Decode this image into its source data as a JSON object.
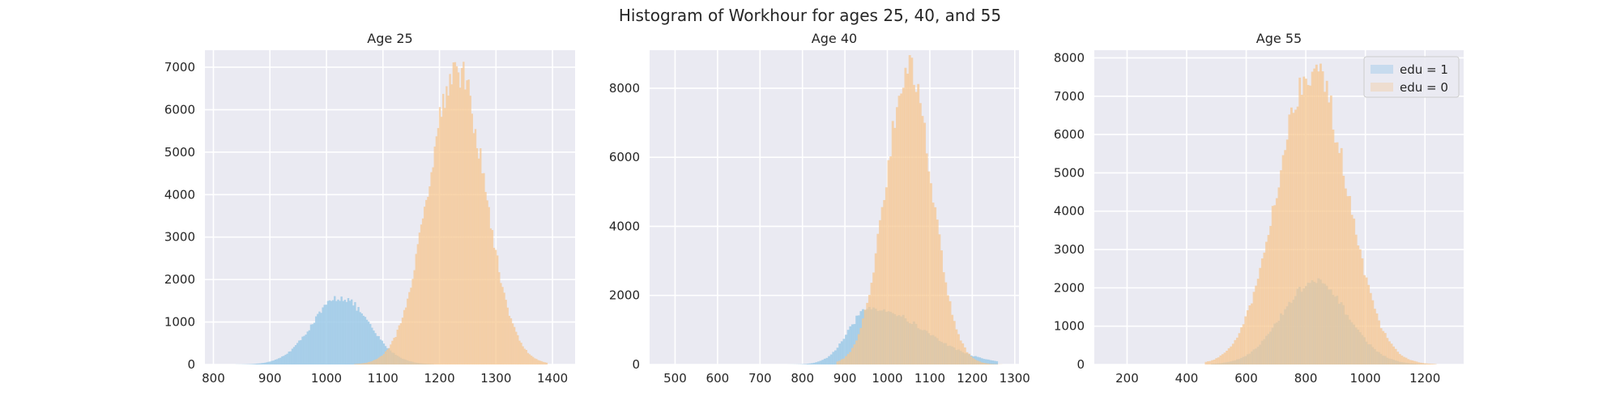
{
  "figure": {
    "title": "Histogram of Workhour for ages 25, 40, and 55"
  },
  "colors": {
    "background": "#eaeaf2",
    "grid": "#ffffff",
    "edu1": "#9ecae8",
    "edu0": "#f6c68f",
    "overlap": "#c9c89e"
  },
  "legend": {
    "position": "upper right (Age 55 panel)",
    "entries": [
      "edu = 1",
      "edu = 0"
    ]
  },
  "chart_data": [
    {
      "type": "histogram",
      "title": "Age 25",
      "xlabel": "",
      "ylabel": "",
      "xlim": [
        785,
        1440
      ],
      "ylim": [
        0,
        7400
      ],
      "xticks": [
        800,
        900,
        1000,
        1100,
        1200,
        1300,
        1400
      ],
      "yticks": [
        0,
        1000,
        2000,
        3000,
        4000,
        5000,
        6000,
        7000
      ],
      "grid": true,
      "bin_width": 3,
      "series": [
        {
          "name": "edu = 1",
          "distribution": "approximately normal",
          "mean": 1025,
          "sd": 50,
          "peak_count": 1580,
          "x_range": [
            840,
            1190
          ]
        },
        {
          "name": "edu = 0",
          "distribution": "approximately normal",
          "mean": 1230,
          "sd": 50,
          "peak_count": 6950,
          "x_range": [
            1050,
            1390
          ]
        }
      ]
    },
    {
      "type": "histogram",
      "title": "Age 40",
      "xlabel": "",
      "ylabel": "",
      "xlim": [
        440,
        1310
      ],
      "ylim": [
        0,
        9100
      ],
      "xticks": [
        500,
        600,
        700,
        800,
        900,
        1000,
        1100,
        1200,
        1300
      ],
      "yticks": [
        0,
        2000,
        4000,
        6000,
        8000
      ],
      "grid": true,
      "bin_width": 5,
      "series": [
        {
          "name": "edu = 1",
          "distribution": "right-skewed",
          "mode": 960,
          "peak_count": 1650,
          "x_range": [
            760,
            1260
          ]
        },
        {
          "name": "edu = 0",
          "distribution": "approximately normal",
          "mean": 1050,
          "sd": 55,
          "peak_count": 8600,
          "x_range": [
            880,
            1270
          ]
        }
      ]
    },
    {
      "type": "histogram",
      "title": "Age 55",
      "xlabel": "",
      "ylabel": "",
      "xlim": [
        90,
        1330
      ],
      "ylim": [
        0,
        8200
      ],
      "xticks": [
        200,
        400,
        600,
        800,
        1000,
        1200
      ],
      "yticks": [
        0,
        1000,
        2000,
        3000,
        4000,
        5000,
        6000,
        7000,
        8000
      ],
      "grid": true,
      "bin_width": 7,
      "series": [
        {
          "name": "edu = 1",
          "distribution": "approximately normal",
          "mean": 830,
          "sd": 110,
          "peak_count": 2150,
          "x_range": [
            480,
            1200
          ]
        },
        {
          "name": "edu = 0",
          "distribution": "approximately normal",
          "mean": 820,
          "sd": 115,
          "peak_count": 7750,
          "x_range": [
            460,
            1240
          ]
        }
      ]
    }
  ]
}
